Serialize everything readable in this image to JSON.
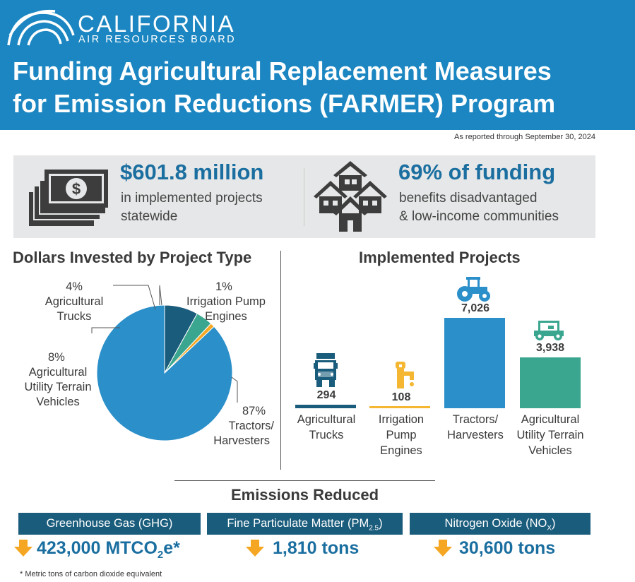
{
  "header": {
    "org_name": "CALIFORNIA",
    "org_sub": "AIR RESOURCES BOARD",
    "title_line1": "Funding Agricultural Replacement Measures",
    "title_line2": "for Emission Reductions (FARMER) Program"
  },
  "as_of": "As reported through September 30, 2024",
  "stats": {
    "funding": {
      "value": "$601.8 million",
      "desc_line1": "in implemented projects",
      "desc_line2": "statewide",
      "icon": "money-icon"
    },
    "benefit": {
      "value": "69% of funding",
      "desc_line1": "benefits disadvantaged",
      "desc_line2": "& low-income communities",
      "icon": "houses-icon"
    }
  },
  "pie_title": "Dollars Invested by Project Type",
  "bar_title": "Implemented Projects",
  "pie_labels": {
    "trucks_pct": "4%",
    "trucks_1": "Agricultural",
    "trucks_2": "Trucks",
    "pump_pct": "1%",
    "pump_1": "Irrigation Pump",
    "pump_2": "Engines",
    "utv_pct": "8%",
    "utv_1": "Agricultural",
    "utv_2": "Utility Terrain",
    "utv_3": "Vehicles",
    "tractor_pct": "87%",
    "tractor_1": "Tractors/",
    "tractor_2": "Harvesters"
  },
  "bar_labels": {
    "trucks_1": "Agricultural",
    "trucks_2": "Trucks",
    "pump_1": "Irrigation",
    "pump_2": "Pump",
    "pump_3": "Engines",
    "tractor_1": "Tractors/",
    "tractor_2": "Harvesters",
    "utv_1": "Agricultural",
    "utv_2": "Utility Terrain",
    "utv_3": "Vehicles"
  },
  "chart_data": [
    {
      "type": "pie",
      "title": "Dollars Invested by Project Type",
      "slices": [
        {
          "label": "Tractors/Harvesters",
          "value": 87,
          "color": "#2b8fc9"
        },
        {
          "label": "Agricultural Utility Terrain Vehicles",
          "value": 8,
          "color": "#1a5c7c"
        },
        {
          "label": "Agricultural Trucks",
          "value": 4,
          "color": "#3aa68f"
        },
        {
          "label": "Irrigation Pump Engines",
          "value": 1,
          "color": "#f5a623"
        }
      ]
    },
    {
      "type": "bar",
      "title": "Implemented Projects",
      "categories": [
        "Agricultural Trucks",
        "Irrigation Pump Engines",
        "Tractors/Harvesters",
        "Agricultural Utility Terrain Vehicles"
      ],
      "values": [
        294,
        108,
        7026,
        3938
      ],
      "value_labels": [
        "294",
        "108",
        "7,026",
        "3,938"
      ],
      "colors": [
        "#1a5c7c",
        "#f5b731",
        "#2b8fc9",
        "#3aa68f"
      ],
      "icons": [
        "truck-icon",
        "pump-icon",
        "tractor-icon",
        "utv-icon"
      ]
    }
  ],
  "emissions": {
    "title": "Emissions Reduced",
    "ghg_label": "Greenhouse Gas (GHG)",
    "ghg_value_pre": "423,000 MTCO",
    "ghg_value_sub": "2",
    "ghg_value_post": "e*",
    "pm_label_pre": "Fine Particulate Matter (PM",
    "pm_label_sub": "2.5",
    "pm_label_post": ")",
    "pm_value": "1,810 tons",
    "nox_label_pre": "Nitrogen Oxide (NO",
    "nox_label_sub": "X",
    "nox_label_post": ")",
    "nox_value": "30,600 tons",
    "arrow_color": "#f5a623",
    "footnote": "* Metric tons of carbon dioxide equivalent"
  }
}
